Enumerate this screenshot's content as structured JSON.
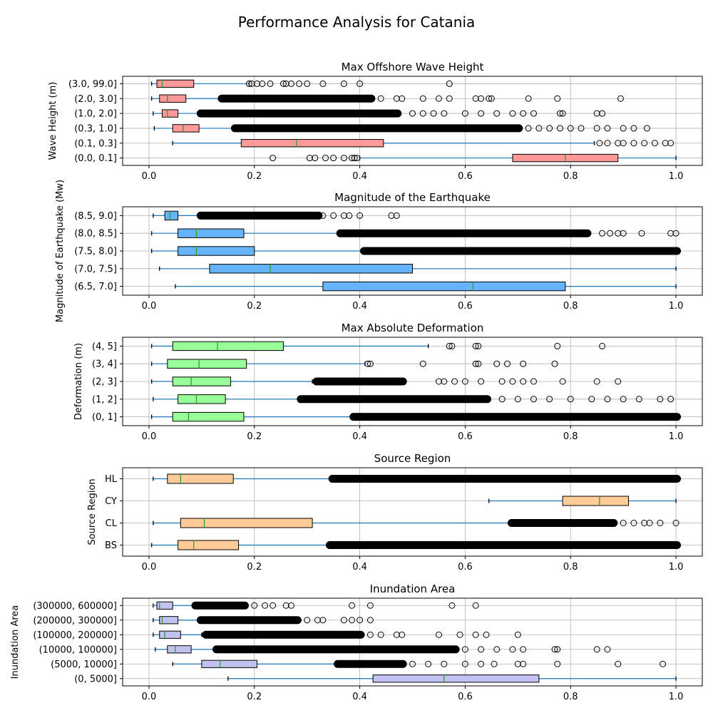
{
  "title": "Performance Analysis for Catania",
  "chart_data": [
    {
      "type": "boxplot",
      "title": "Max Offshore Wave Height",
      "ylabel": "Wave Height (m)",
      "xlim": [
        -0.05,
        1.05
      ],
      "xticks": [
        "0.0",
        "0.2",
        "0.4",
        "0.6",
        "0.8",
        "1.0"
      ],
      "grid": true,
      "box_color": "#ff9999",
      "categories": [
        "(0.0, 0.1]",
        "(0.1, 0.3]",
        "(0.3, 1.0]",
        "(1.0, 2.0]",
        "(2.0, 3.0]",
        "(3.0, 99.0]"
      ],
      "boxes": [
        {
          "whisker_low": 0.4,
          "q1": 0.69,
          "median": 0.79,
          "q3": 0.89,
          "whisker_high": 1.0,
          "outliers": [
            0.235,
            0.305,
            0.315,
            0.335,
            0.35,
            0.37,
            0.385,
            0.39,
            0.395
          ],
          "dense": null
        },
        {
          "whisker_low": 0.045,
          "q1": 0.175,
          "median": 0.28,
          "q3": 0.445,
          "whisker_high": 0.845,
          "outliers": [
            0.855,
            0.87,
            0.89,
            0.9,
            0.92,
            0.94,
            0.96,
            0.98,
            0.99
          ],
          "dense": null
        },
        {
          "whisker_low": 0.01,
          "q1": 0.045,
          "median": 0.065,
          "q3": 0.095,
          "whisker_high": 0.16,
          "outliers": [
            0.72,
            0.74,
            0.76,
            0.78,
            0.8,
            0.82,
            0.85,
            0.87,
            0.9,
            0.92,
            0.945
          ],
          "dense": [
            0.165,
            0.7
          ]
        },
        {
          "whisker_low": 0.008,
          "q1": 0.025,
          "median": 0.035,
          "q3": 0.055,
          "whisker_high": 0.095,
          "outliers": [
            0.5,
            0.52,
            0.54,
            0.56,
            0.6,
            0.63,
            0.66,
            0.69,
            0.71,
            0.73,
            0.78,
            0.785,
            0.85,
            0.86
          ],
          "dense": [
            0.1,
            0.47
          ]
        },
        {
          "whisker_low": 0.005,
          "q1": 0.02,
          "median": 0.035,
          "q3": 0.07,
          "whisker_high": 0.135,
          "outliers": [
            0.44,
            0.47,
            0.48,
            0.52,
            0.55,
            0.57,
            0.62,
            0.63,
            0.645,
            0.65,
            0.72,
            0.775,
            0.895
          ],
          "dense": [
            0.14,
            0.42
          ]
        },
        {
          "whisker_low": 0.005,
          "q1": 0.015,
          "median": 0.025,
          "q3": 0.085,
          "whisker_high": 0.19,
          "outliers": [
            0.19,
            0.195,
            0.205,
            0.215,
            0.23,
            0.255,
            0.26,
            0.27,
            0.285,
            0.3,
            0.33,
            0.37,
            0.4,
            0.57
          ],
          "dense": null
        }
      ]
    },
    {
      "type": "boxplot",
      "title": "Magnitude of the Earthquake",
      "ylabel": "Magnitude of Earthquake (Mw)",
      "xlim": [
        -0.05,
        1.05
      ],
      "xticks": [
        "0.0",
        "0.2",
        "0.4",
        "0.6",
        "0.8",
        "1.0"
      ],
      "grid": true,
      "box_color": "#66b3ff",
      "categories": [
        "(6.5, 7.0]",
        "(7.0, 7.5]",
        "(7.5, 8.0]",
        "(8.0, 8.5]",
        "(8.5, 9.0]"
      ],
      "boxes": [
        {
          "whisker_low": 0.05,
          "q1": 0.33,
          "median": 0.615,
          "q3": 0.79,
          "whisker_high": 1.0,
          "outliers": [],
          "dense": null
        },
        {
          "whisker_low": 0.02,
          "q1": 0.115,
          "median": 0.23,
          "q3": 0.5,
          "whisker_high": 1.0,
          "outliers": [],
          "dense": null
        },
        {
          "whisker_low": 0.005,
          "q1": 0.055,
          "median": 0.09,
          "q3": 0.2,
          "whisker_high": 0.405,
          "outliers": [],
          "dense": [
            0.41,
            1.0
          ]
        },
        {
          "whisker_low": 0.005,
          "q1": 0.055,
          "median": 0.09,
          "q3": 0.18,
          "whisker_high": 0.36,
          "outliers": [
            0.86,
            0.875,
            0.89,
            0.9,
            0.935,
            0.99,
            1.0
          ],
          "dense": [
            0.365,
            0.83
          ]
        },
        {
          "whisker_low": 0.008,
          "q1": 0.03,
          "median": 0.04,
          "q3": 0.055,
          "whisker_high": 0.095,
          "outliers": [
            0.33,
            0.35,
            0.37,
            0.38,
            0.4,
            0.46,
            0.47
          ],
          "dense": [
            0.1,
            0.32
          ]
        }
      ]
    },
    {
      "type": "boxplot",
      "title": "Max Absolute Deformation",
      "ylabel": "Deformation (m)",
      "xlim": [
        -0.05,
        1.05
      ],
      "xticks": [
        "0.0",
        "0.2",
        "0.4",
        "0.6",
        "0.8",
        "1.0"
      ],
      "grid": true,
      "box_color": "#99ff99",
      "categories": [
        "(0, 1]",
        "(1, 2]",
        "(2, 3]",
        "(3, 4]",
        "(4, 5]"
      ],
      "boxes": [
        {
          "whisker_low": 0.005,
          "q1": 0.045,
          "median": 0.075,
          "q3": 0.18,
          "whisker_high": 0.385,
          "outliers": [],
          "dense": [
            0.39,
            1.0
          ]
        },
        {
          "whisker_low": 0.008,
          "q1": 0.055,
          "median": 0.09,
          "q3": 0.145,
          "whisker_high": 0.285,
          "outliers": [
            0.67,
            0.7,
            0.73,
            0.76,
            0.8,
            0.84,
            0.87,
            0.9,
            0.93,
            0.97,
            0.99
          ],
          "dense": [
            0.29,
            0.64
          ]
        },
        {
          "whisker_low": 0.005,
          "q1": 0.045,
          "median": 0.08,
          "q3": 0.155,
          "whisker_high": 0.31,
          "outliers": [
            0.55,
            0.56,
            0.58,
            0.6,
            0.63,
            0.67,
            0.69,
            0.71,
            0.73,
            0.785,
            0.85,
            0.89
          ],
          "dense": [
            0.32,
            0.48
          ]
        },
        {
          "whisker_low": 0.005,
          "q1": 0.035,
          "median": 0.095,
          "q3": 0.185,
          "whisker_high": 0.41,
          "outliers": [
            0.415,
            0.42,
            0.52,
            0.62,
            0.625,
            0.66,
            0.68,
            0.71,
            0.77
          ],
          "dense": null
        },
        {
          "whisker_low": 0.005,
          "q1": 0.045,
          "median": 0.13,
          "q3": 0.255,
          "whisker_high": 0.53,
          "outliers": [
            0.57,
            0.575,
            0.62,
            0.625,
            0.775,
            0.86
          ],
          "dense": null
        }
      ]
    },
    {
      "type": "boxplot",
      "title": "Source Region",
      "ylabel": "Source Region",
      "xlim": [
        -0.05,
        1.05
      ],
      "xticks": [
        "0.0",
        "0.2",
        "0.4",
        "0.6",
        "0.8",
        "1.0"
      ],
      "grid": true,
      "box_color": "#ffcc99",
      "categories": [
        "BS",
        "CL",
        "CY",
        "HL"
      ],
      "boxes": [
        {
          "whisker_low": 0.005,
          "q1": 0.055,
          "median": 0.085,
          "q3": 0.17,
          "whisker_high": 0.34,
          "outliers": [],
          "dense": [
            0.345,
            1.0
          ]
        },
        {
          "whisker_low": 0.008,
          "q1": 0.06,
          "median": 0.105,
          "q3": 0.31,
          "whisker_high": 0.69,
          "outliers": [
            0.9,
            0.92,
            0.94,
            0.95,
            0.97,
            1.0
          ],
          "dense": [
            0.69,
            0.88
          ]
        },
        {
          "whisker_low": 0.645,
          "q1": 0.785,
          "median": 0.855,
          "q3": 0.91,
          "whisker_high": 1.0,
          "outliers": [],
          "dense": null
        },
        {
          "whisker_low": 0.008,
          "q1": 0.035,
          "median": 0.06,
          "q3": 0.16,
          "whisker_high": 0.35,
          "outliers": [],
          "dense": [
            0.35,
            1.0
          ]
        }
      ]
    },
    {
      "type": "boxplot",
      "title": "Inundation Area",
      "ylabel": "Inundation Area",
      "xlim": [
        -0.05,
        1.05
      ],
      "xticks": [
        "0.0",
        "0.2",
        "0.4",
        "0.6",
        "0.8",
        "1.0"
      ],
      "grid": true,
      "box_color": "#c2c2f0",
      "categories": [
        "(0, 5000]",
        "(5000, 10000]",
        "(10000, 100000]",
        "(100000, 200000]",
        "(200000, 300000]",
        "(300000, 600000]"
      ],
      "boxes": [
        {
          "whisker_low": 0.15,
          "q1": 0.425,
          "median": 0.56,
          "q3": 0.74,
          "whisker_high": 1.0,
          "outliers": [],
          "dense": null
        },
        {
          "whisker_low": 0.045,
          "q1": 0.1,
          "median": 0.135,
          "q3": 0.205,
          "whisker_high": 0.36,
          "outliers": [
            0.5,
            0.53,
            0.56,
            0.6,
            0.63,
            0.655,
            0.7,
            0.71,
            0.775,
            0.89,
            0.975
          ],
          "dense": [
            0.36,
            0.48
          ]
        },
        {
          "whisker_low": 0.012,
          "q1": 0.035,
          "median": 0.05,
          "q3": 0.08,
          "whisker_high": 0.13,
          "outliers": [
            0.6,
            0.63,
            0.66,
            0.69,
            0.71,
            0.77,
            0.775,
            0.85,
            0.87
          ],
          "dense": [
            0.13,
            0.58
          ]
        },
        {
          "whisker_low": 0.008,
          "q1": 0.02,
          "median": 0.03,
          "q3": 0.06,
          "whisker_high": 0.1,
          "outliers": [
            0.42,
            0.44,
            0.47,
            0.48,
            0.55,
            0.59,
            0.62,
            0.64,
            0.7
          ],
          "dense": [
            0.11,
            0.4
          ]
        },
        {
          "whisker_low": 0.008,
          "q1": 0.02,
          "median": 0.025,
          "q3": 0.055,
          "whisker_high": 0.1,
          "outliers": [
            0.3,
            0.32,
            0.33,
            0.37,
            0.385,
            0.4,
            0.42
          ],
          "dense": [
            0.1,
            0.28
          ]
        },
        {
          "whisker_low": 0.008,
          "q1": 0.015,
          "median": 0.02,
          "q3": 0.045,
          "whisker_high": 0.09,
          "outliers": [
            0.2,
            0.22,
            0.235,
            0.26,
            0.27,
            0.385,
            0.42,
            0.575,
            0.62
          ],
          "dense": [
            0.09,
            0.18
          ]
        }
      ]
    }
  ]
}
